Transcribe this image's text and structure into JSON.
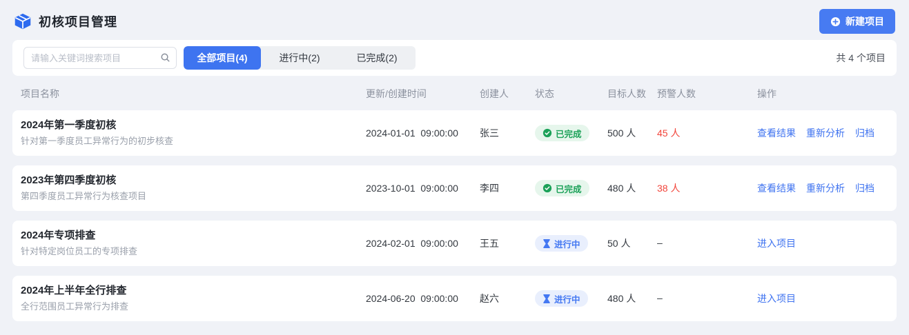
{
  "colors": {
    "primary_blue": "#3e74f0",
    "link_blue": "#3f73f0",
    "done_green": "#1ba158",
    "done_green_bg": "#e6f6ec",
    "progress_blue": "#4478f2",
    "progress_blue_bg": "#e9effd",
    "alert_red": "#f2443a",
    "page_bg": "#f0f2f7"
  },
  "header": {
    "title": "初核项目管理",
    "new_project_label": "新建项目"
  },
  "toolbar": {
    "search_placeholder": "请输入关键词搜索项目",
    "search_value": "",
    "tabs": [
      {
        "label": "全部项目(4)",
        "active": true
      },
      {
        "label": "进行中(2)",
        "active": false
      },
      {
        "label": "已完成(2)",
        "active": false
      }
    ],
    "total_text": "共 4 个项目"
  },
  "table": {
    "columns": [
      "项目名称",
      "更新/创建时间",
      "创建人",
      "状态",
      "目标人数",
      "预警人数",
      "操作"
    ],
    "rows": [
      {
        "name": "2024年第一季度初核",
        "description": "针对第一季度员工异常行为的初步核查",
        "time": "2024-01-01  09:00:00",
        "creator": "张三",
        "status": "已完成",
        "status_type": "done",
        "target": "500 人",
        "warning": "45 人",
        "warning_alert": true,
        "actions": [
          "查看结果",
          "重新分析",
          "归档"
        ]
      },
      {
        "name": "2023年第四季度初核",
        "description": "第四季度员工异常行为核查项目",
        "time": "2023-10-01  09:00:00",
        "creator": "李四",
        "status": "已完成",
        "status_type": "done",
        "target": "480 人",
        "warning": "38 人",
        "warning_alert": true,
        "actions": [
          "查看结果",
          "重新分析",
          "归档"
        ]
      },
      {
        "name": "2024年专项排查",
        "description": "针对特定岗位员工的专项排查",
        "time": "2024-02-01  09:00:00",
        "creator": "王五",
        "status": "进行中",
        "status_type": "progress",
        "target": "50 人",
        "warning": "–",
        "warning_alert": false,
        "actions": [
          "进入项目"
        ]
      },
      {
        "name": "2024年上半年全行排查",
        "description": "全行范围员工异常行为排查",
        "time": "2024-06-20  09:00:00",
        "creator": "赵六",
        "status": "进行中",
        "status_type": "progress",
        "target": "480 人",
        "warning": "–",
        "warning_alert": false,
        "actions": [
          "进入项目"
        ]
      }
    ]
  }
}
